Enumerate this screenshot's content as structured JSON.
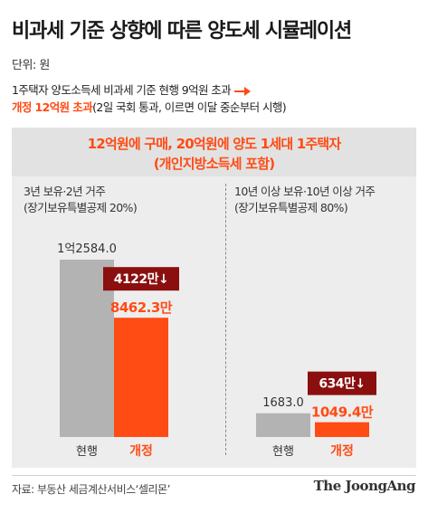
{
  "header": {
    "title": "비과세 기준 상향에 따른 양도세 시뮬레이션",
    "unit": "단위: 원"
  },
  "notes": {
    "line1": "1주택자 양도소득세 비과세 기준 현행 9억원 초과",
    "line2_highlight": "개정 12억원 초과",
    "line2_rest": "(2일 국회 통과, 이르면 이달 중순부터 시행)"
  },
  "panel": {
    "title_line1": "12억원에 구매, 20억원에 양도 1세대 1주택자",
    "title_line2": "(개인지방소득세 포함)"
  },
  "colors": {
    "current": "#b3b3b3",
    "revised": "#ff4b14",
    "diff_badge": "#8b0f0f",
    "revised_label": "#ff4b14"
  },
  "chart_data": [
    {
      "type": "bar",
      "subtitle_line1": "3년 보유·2년 거주",
      "subtitle_line2": "(장기보유특별공제 20%)",
      "categories": [
        "현행",
        "개정"
      ],
      "values": [
        12584.0,
        8462.3
      ],
      "value_labels": [
        "1억2584.0",
        "8462.3만"
      ],
      "unit": "만원",
      "difference": 4122,
      "difference_label": "4122만↓"
    },
    {
      "type": "bar",
      "subtitle_line1": "10년 이상 보유·10년 이상 거주",
      "subtitle_line2": "(장기보유특별공제 80%)",
      "categories": [
        "현행",
        "개정"
      ],
      "values": [
        1683.0,
        1049.4
      ],
      "value_labels": [
        "1683.0",
        "1049.4만"
      ],
      "unit": "만원",
      "difference": 634,
      "difference_label": "634만↓"
    }
  ],
  "footer": {
    "source": "자료: 부동산 세금계산서비스‘셀리몬’",
    "brand": "The JoongAng"
  }
}
